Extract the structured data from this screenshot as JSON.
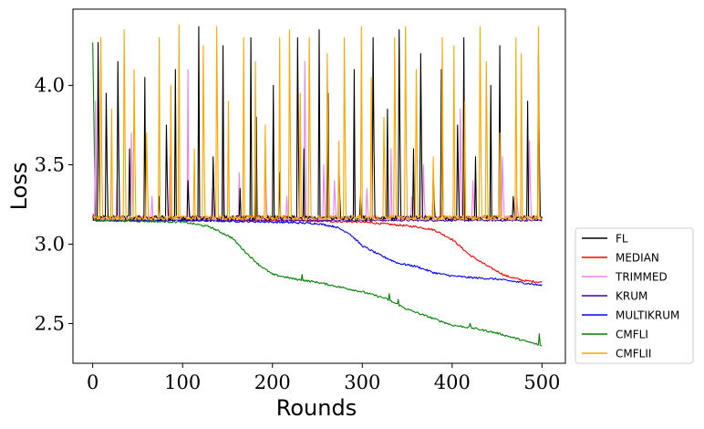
{
  "chart_data": {
    "type": "line",
    "title": "",
    "xlabel": "Rounds",
    "ylabel": "Loss",
    "xlim": [
      -22,
      526
    ],
    "ylim": [
      2.25,
      4.48
    ],
    "xticks": [
      0,
      100,
      200,
      300,
      400,
      500
    ],
    "xtick_labels": [
      "0",
      "100",
      "200",
      "300",
      "400",
      "500"
    ],
    "yticks": [
      2.5,
      3.0,
      3.5,
      4.0
    ],
    "ytick_labels": [
      "2.5",
      "3.0",
      "3.5",
      "4.0"
    ],
    "grid": false,
    "legend_position": "outside-right-lower",
    "rounds": 500,
    "series": [
      {
        "name": "FL",
        "color": "#000000",
        "style": "oscillating",
        "baseline": 3.15,
        "peak_values": [
          4.27,
          3.95,
          4.15,
          3.6,
          4.05,
          3.3,
          3.75,
          4.1,
          3.4,
          4.37,
          3.55,
          4.25,
          3.35,
          4.3,
          3.8,
          4.0,
          3.45,
          4.3,
          3.6,
          4.35,
          3.95,
          3.5,
          4.1,
          3.3,
          4.3,
          3.85,
          4.35,
          3.6,
          4.2,
          3.45,
          4.1,
          3.75,
          4.3,
          3.55,
          4.0,
          4.25,
          3.3,
          3.9,
          4.2
        ]
      },
      {
        "name": "MEDIAN",
        "color": "#ff0000",
        "style": "smooth",
        "x": [
          0,
          5,
          100,
          200,
          300,
          340,
          360,
          380,
          400,
          420,
          440,
          460,
          480,
          500
        ],
        "values": [
          3.19,
          3.15,
          3.15,
          3.15,
          3.14,
          3.12,
          3.11,
          3.09,
          3.03,
          2.93,
          2.86,
          2.8,
          2.77,
          2.76
        ]
      },
      {
        "name": "TRIMMED",
        "color": "#ee82ee",
        "style": "oscillating",
        "baseline": 3.15,
        "peak_values": [
          3.9,
          3.4,
          3.7,
          3.3,
          3.55,
          4.1,
          3.35,
          3.75,
          3.45,
          3.6,
          3.3,
          4.15,
          3.5,
          3.4,
          3.8,
          3.35,
          3.6,
          3.3,
          3.5,
          3.25,
          3.85,
          3.4,
          3.55,
          3.3,
          3.65
        ]
      },
      {
        "name": "KRUM",
        "color": "#3d00aa",
        "style": "smooth",
        "x": [
          0,
          500
        ],
        "values": [
          3.15,
          3.15
        ]
      },
      {
        "name": "MULTIKRUM",
        "color": "#0000ff",
        "style": "smooth",
        "x": [
          0,
          5,
          100,
          200,
          250,
          270,
          285,
          300,
          320,
          340,
          360,
          380,
          400,
          420,
          450,
          500
        ],
        "values": [
          3.18,
          3.15,
          3.15,
          3.14,
          3.13,
          3.11,
          3.07,
          2.99,
          2.93,
          2.88,
          2.86,
          2.82,
          2.8,
          2.79,
          2.78,
          2.74
        ]
      },
      {
        "name": "CMFLI",
        "color": "#008000",
        "style": "smooth",
        "x": [
          0,
          3,
          100,
          130,
          155,
          170,
          185,
          200,
          225,
          250,
          275,
          300,
          325,
          350,
          375,
          400,
          425,
          450,
          475,
          500
        ],
        "values": [
          4.27,
          3.15,
          3.14,
          3.11,
          3.04,
          2.95,
          2.87,
          2.81,
          2.78,
          2.76,
          2.73,
          2.7,
          2.66,
          2.59,
          2.54,
          2.49,
          2.47,
          2.44,
          2.4,
          2.36
        ]
      },
      {
        "name": "CMFLII",
        "color": "#ffa500",
        "style": "oscillating",
        "baseline": 3.15,
        "peak_values": [
          4.3,
          3.85,
          4.35,
          4.1,
          3.7,
          4.3,
          4.0,
          4.38,
          3.6,
          4.25,
          4.37,
          3.9,
          4.3,
          4.15,
          3.75,
          4.3,
          4.35,
          3.95,
          4.3,
          4.2,
          3.65,
          4.3,
          4.37,
          4.05,
          3.8,
          4.3,
          4.37,
          4.1,
          3.55,
          4.3,
          4.25,
          3.9,
          4.37,
          4.15,
          3.7,
          4.3,
          4.2,
          4.37
        ]
      }
    ]
  }
}
